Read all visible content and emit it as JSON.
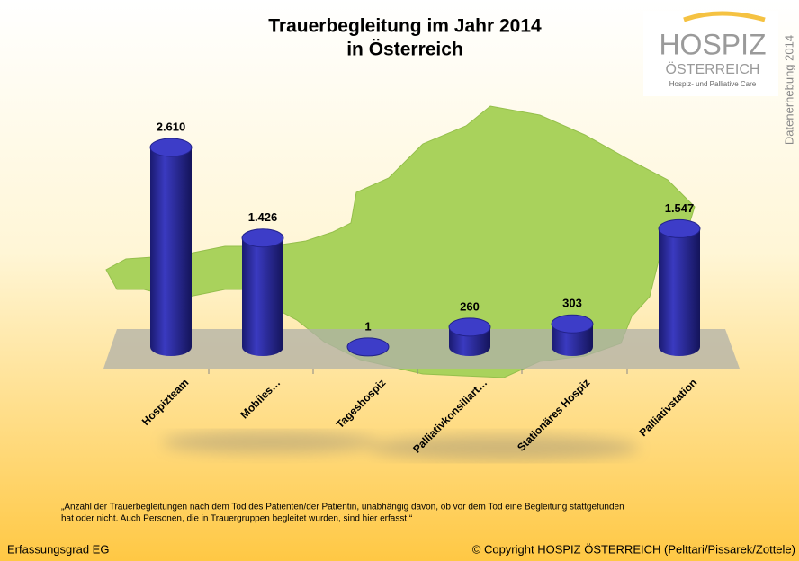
{
  "chart_data": {
    "type": "bar",
    "title": [
      "Trauerbegleitung im Jahr 2014",
      "in Österreich"
    ],
    "logo": {
      "name": "HOSPIZ",
      "country": "ÖSTERREICH",
      "tagline": "Hospiz- und Palliative Care"
    },
    "side_note": "Datenerhebung 2014",
    "categories": [
      "Hospizteam",
      "Mobiles…",
      "Tageshospiz",
      "Palliativkonsiliart…",
      "Stationäres Hospiz",
      "Palliativstation"
    ],
    "values": [
      2610,
      1426,
      1,
      260,
      303,
      1547
    ],
    "value_labels": [
      "2.610",
      "1.426",
      "1",
      "260",
      "303",
      "1.547"
    ],
    "color": "#2b2b9c",
    "footnote": [
      "„Anzahl der Trauerbegleitungen nach dem Tod des Patienten/der Patientin, unabhängig davon, ob vor dem Tod eine Begleitung stattgefunden",
      "hat oder nicht. Auch Personen, die in Trauergruppen begleitet wurden, sind hier erfasst.“"
    ],
    "footer_left": "Erfassungsgrad EG",
    "footer_right": "© Copyright HOSPIZ ÖSTERREICH (Pelttari/Pissarek/Zottele)"
  }
}
